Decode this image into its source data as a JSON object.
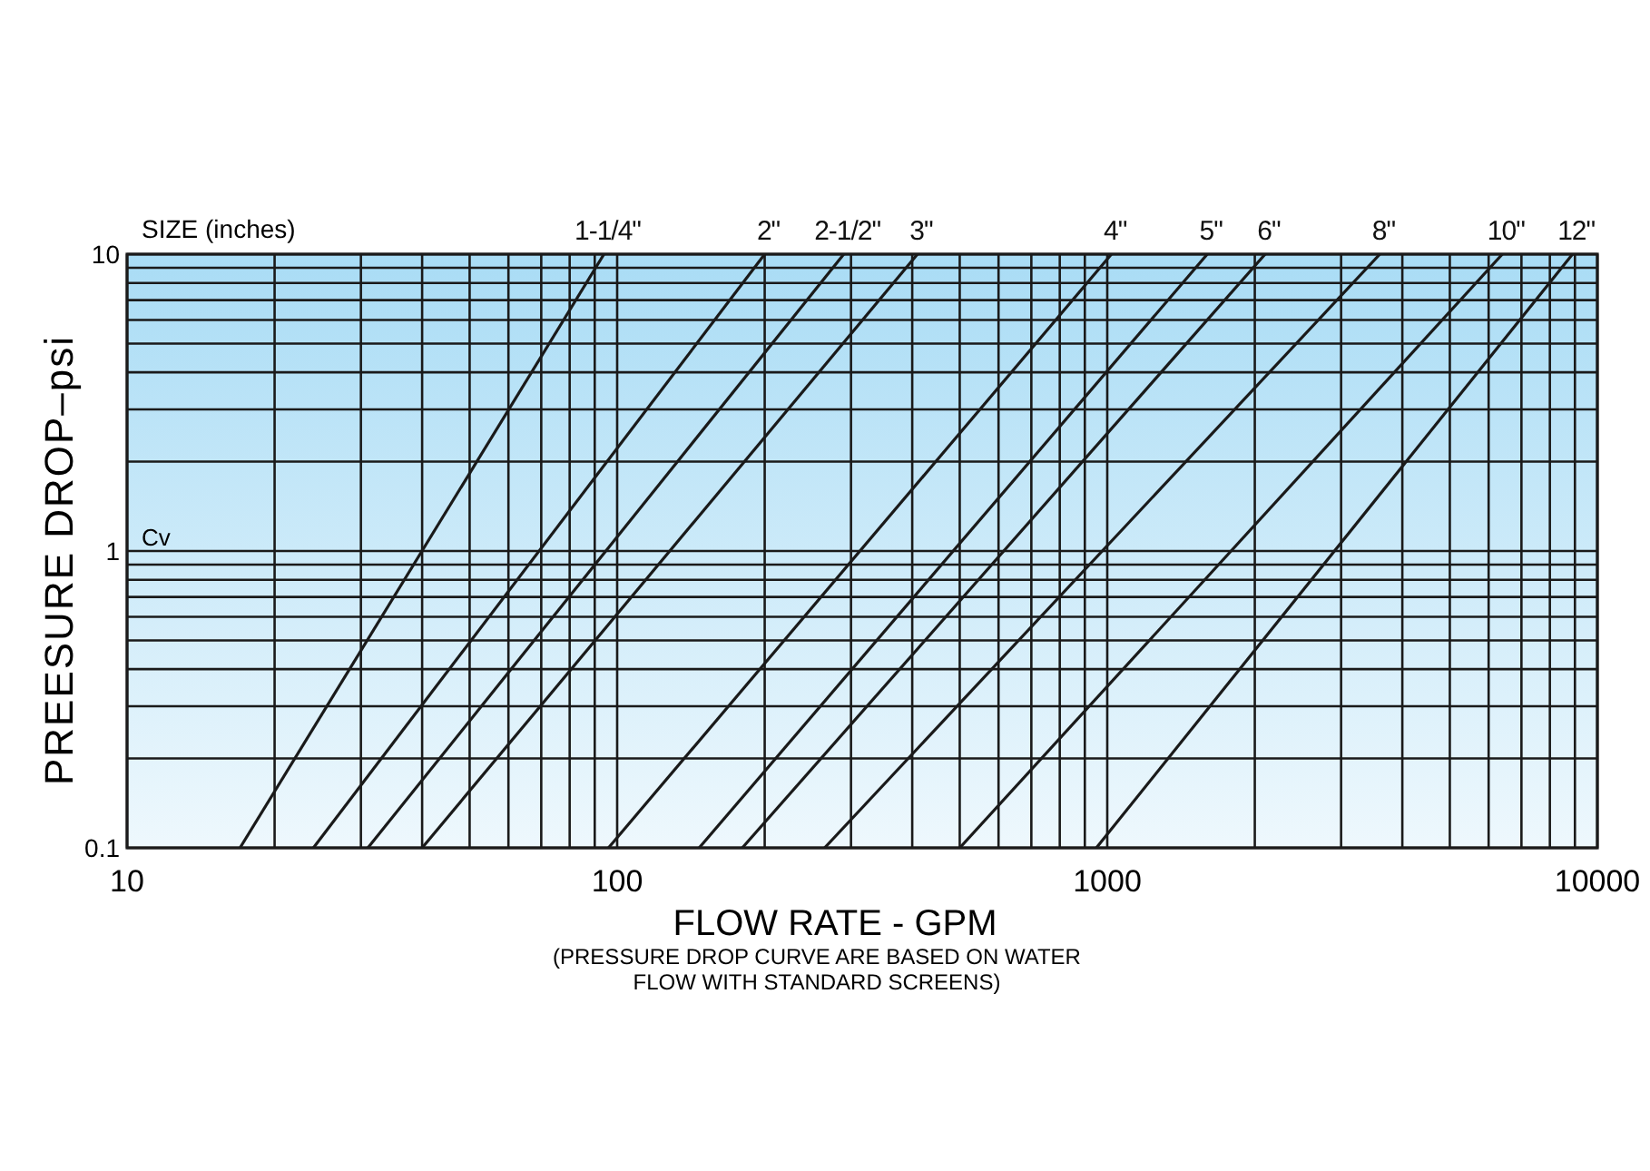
{
  "chart_data": {
    "type": "line",
    "xlabel": "FLOW RATE - GPM",
    "ylabel": "PREESURE DROP–psi",
    "log": "xy",
    "grid": true,
    "marker": "none",
    "line_style": "solid",
    "xlim": [
      10,
      10000
    ],
    "xticks": [
      10,
      100,
      1000,
      10000
    ],
    "ylim": [
      0.1,
      10
    ],
    "yticks": [
      0.1,
      1,
      10
    ],
    "annotations": [
      "SIZE (inches)",
      "Cv",
      "(PRESSURE DROP CURVE ARE BASED ON WATER\nFLOW WITH STANDARD SCREENS)"
    ],
    "series": [
      {
        "name": "1-1/4\"",
        "color": "#1a1a1a",
        "x": [
          17,
          94
        ],
        "values": [
          0.1,
          10
        ]
      },
      {
        "name": "2\"",
        "color": "#1a1a1a",
        "x": [
          24,
          200
        ],
        "values": [
          0.1,
          10
        ]
      },
      {
        "name": "2-1/2\"",
        "color": "#1a1a1a",
        "x": [
          31,
          290
        ],
        "values": [
          0.1,
          10
        ]
      },
      {
        "name": "3\"",
        "color": "#1a1a1a",
        "x": [
          40,
          410
        ],
        "values": [
          0.1,
          10
        ]
      },
      {
        "name": "4\"",
        "color": "#1a1a1a",
        "x": [
          96,
          1020
        ],
        "values": [
          0.1,
          10
        ]
      },
      {
        "name": "5\"",
        "color": "#1a1a1a",
        "x": [
          147,
          1600
        ],
        "values": [
          0.1,
          10
        ]
      },
      {
        "name": "6\"",
        "color": "#1a1a1a",
        "x": [
          180,
          2100
        ],
        "values": [
          0.1,
          10
        ]
      },
      {
        "name": "8\"",
        "color": "#1a1a1a",
        "x": [
          265,
          3600
        ],
        "values": [
          0.1,
          10
        ]
      },
      {
        "name": "10\"",
        "color": "#1a1a1a",
        "x": [
          500,
          6400
        ],
        "values": [
          0.1,
          10
        ]
      },
      {
        "name": "12\"",
        "color": "#1a1a1a",
        "x": [
          950,
          8900
        ],
        "values": [
          0.1,
          10
        ]
      }
    ]
  }
}
